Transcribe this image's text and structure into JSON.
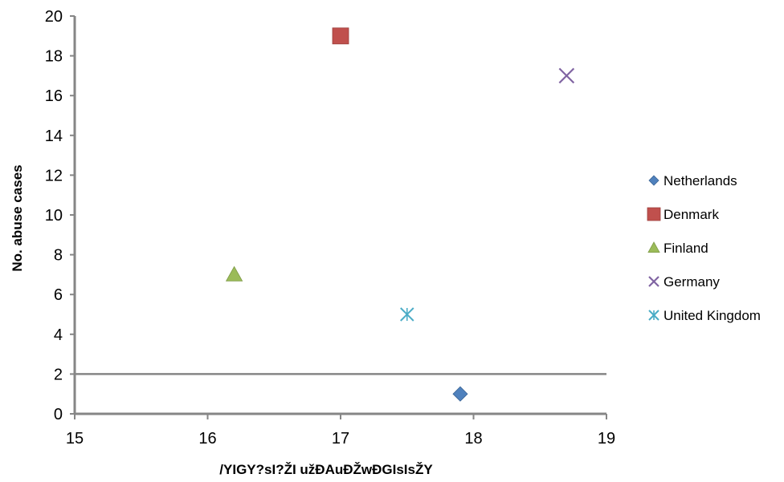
{
  "chart_data": {
    "type": "scatter",
    "title": "",
    "xlabel": "/YIGY?sI?ŽI užÐAuÐŽwÐGIsIsŽY",
    "ylabel": "No. abuse cases",
    "xlim": [
      15,
      19
    ],
    "ylim": [
      0,
      20
    ],
    "xticks": [
      "15",
      "16",
      "17",
      "18",
      "19"
    ],
    "yticks": [
      "0",
      "2",
      "4",
      "6",
      "8",
      "10",
      "12",
      "14",
      "16",
      "18",
      "20"
    ],
    "grid": false,
    "legend_position": "right",
    "reference_line_y": 2,
    "series": [
      {
        "name": "Netherlands",
        "marker": "diamond",
        "color": "#4f81bd",
        "points": [
          {
            "x": 17.9,
            "y": 1
          }
        ]
      },
      {
        "name": "Denmark",
        "marker": "square",
        "color": "#c0504d",
        "points": [
          {
            "x": 17.0,
            "y": 19
          }
        ]
      },
      {
        "name": "Finland",
        "marker": "triangle",
        "color": "#9bbb59",
        "points": [
          {
            "x": 16.2,
            "y": 7
          }
        ]
      },
      {
        "name": "Germany",
        "marker": "x",
        "color": "#8064a2",
        "points": [
          {
            "x": 18.7,
            "y": 17
          }
        ]
      },
      {
        "name": "United Kingdom",
        "marker": "star",
        "color": "#4bacc6",
        "points": [
          {
            "x": 17.5,
            "y": 5
          }
        ]
      }
    ]
  }
}
